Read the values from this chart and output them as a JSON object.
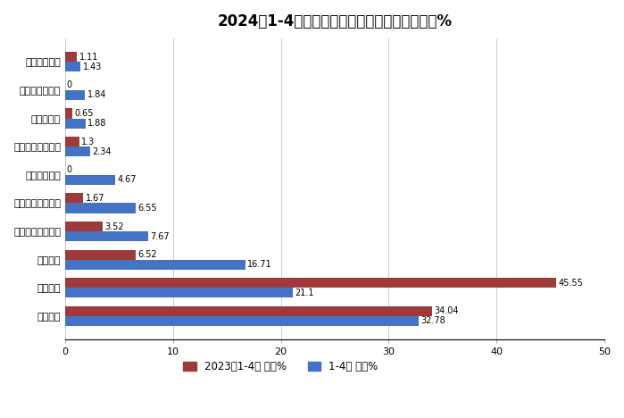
{
  "title": "2024年1-4月新能源搅拌车占比及去年同期占比%",
  "categories": [
    "徐工重卡",
    "三一汽车",
    "中联重科",
    "远程新能源商用车",
    "芜湖中集瑞江汽车",
    "中国重汽集团",
    "洛阳中集凌宇汽车",
    "福田戴姆勒",
    "河南犀重新能源",
    "广州穗景客车"
  ],
  "values_2023": [
    34.04,
    45.55,
    6.52,
    3.52,
    1.67,
    0,
    1.3,
    0.65,
    0,
    1.11
  ],
  "values_2024": [
    32.78,
    21.1,
    16.71,
    7.67,
    6.55,
    4.67,
    2.34,
    1.88,
    1.84,
    1.43
  ],
  "color_2023": "#9E3A3A",
  "color_2024": "#4472C4",
  "legend_2023": "2023年1-4月 占比%",
  "legend_2024": "1-4月 占比%",
  "xlim": [
    0,
    50
  ],
  "xticks": [
    0,
    10,
    20,
    30,
    40,
    50
  ],
  "bar_height": 0.35,
  "figsize": [
    6.99,
    4.68
  ],
  "dpi": 100,
  "background_color": "#FFFFFF",
  "title_fontsize": 12,
  "tick_fontsize": 8,
  "value_fontsize": 7
}
